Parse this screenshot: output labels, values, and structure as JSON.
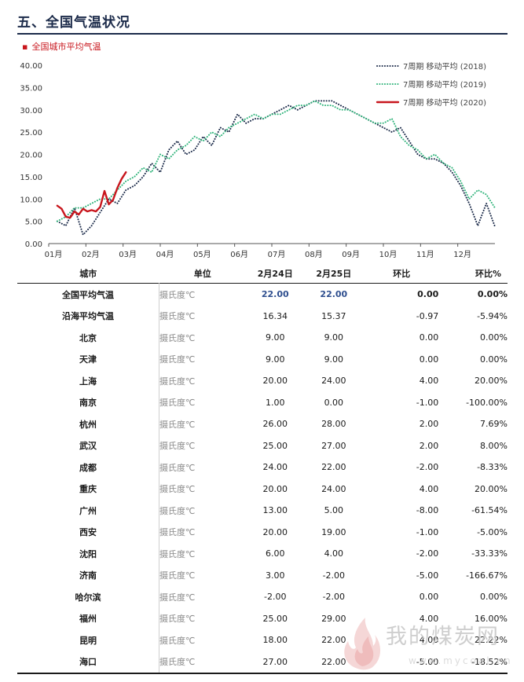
{
  "header": {
    "title": "五、全国气温状况"
  },
  "subtitle": {
    "bullet": "▪",
    "text": "全国城市平均气温"
  },
  "colors": {
    "y2018": "#1c2b4a",
    "y2019": "#2fb37a",
    "y2020": "#c8161d",
    "title": "#1c2b4a"
  },
  "chart_data": {
    "type": "line",
    "x_tick_labels": [
      "01月",
      "02月",
      "03月",
      "04月",
      "05月",
      "06月",
      "07月",
      "08月",
      "09月",
      "10月",
      "11月",
      "12月"
    ],
    "y_tick_labels": [
      "0.00",
      "5.00",
      "10.00",
      "15.00",
      "20.00",
      "25.00",
      "30.00",
      "35.00",
      "40.00"
    ],
    "ylim": [
      0,
      40
    ],
    "x_unit": "week",
    "xlim": [
      0,
      52
    ],
    "legend_position": "top-right",
    "grid": false,
    "series": [
      {
        "name": "7周期 移动平均 (2018)",
        "style": "dotted",
        "color": "#1c2b4a",
        "x": [
          1,
          2,
          3,
          4,
          5,
          6,
          7,
          8,
          9,
          10,
          11,
          12,
          13,
          14,
          15,
          16,
          17,
          18,
          19,
          20,
          21,
          22,
          23,
          24,
          25,
          26,
          27,
          28,
          29,
          30,
          31,
          32,
          33,
          34,
          35,
          36,
          37,
          38,
          39,
          40,
          41,
          42,
          43,
          44,
          45,
          46,
          47,
          48,
          49,
          50,
          51,
          52
        ],
        "values": [
          5,
          4,
          8,
          2,
          4,
          7,
          10,
          9,
          12,
          13,
          15,
          18,
          16,
          21,
          23,
          20,
          21,
          24,
          22,
          26,
          25,
          29,
          27,
          28,
          28,
          29,
          30,
          31,
          30,
          31,
          32,
          32,
          32,
          31,
          30,
          29,
          28,
          27,
          26,
          25,
          26,
          23,
          20,
          19,
          19,
          18,
          16,
          13,
          9,
          4,
          9,
          3.8
        ]
      },
      {
        "name": "7周期 移动平均 (2019)",
        "style": "dotted",
        "color": "#2fb37a",
        "x": [
          1,
          2,
          3,
          4,
          5,
          6,
          7,
          8,
          9,
          10,
          11,
          12,
          13,
          14,
          15,
          16,
          17,
          18,
          19,
          20,
          21,
          22,
          23,
          24,
          25,
          26,
          27,
          28,
          29,
          30,
          31,
          32,
          33,
          34,
          35,
          36,
          37,
          38,
          39,
          40,
          41,
          42,
          43,
          44,
          45,
          46,
          47,
          48,
          49,
          50,
          51,
          52
        ],
        "values": [
          5,
          6,
          8,
          8,
          9,
          10,
          10,
          12,
          14,
          15,
          17,
          16,
          20,
          19,
          21,
          22,
          24,
          23,
          25,
          24,
          26,
          27,
          28,
          29,
          28,
          29,
          29,
          30,
          31,
          31,
          32,
          31,
          31,
          30,
          30,
          29,
          28,
          27,
          27,
          28,
          24,
          22,
          21,
          19,
          20,
          18,
          17,
          14,
          10,
          12,
          11,
          8
        ]
      },
      {
        "name": "7周期 移动平均 (2020)",
        "style": "solid",
        "color": "#c8161d",
        "x": [
          1,
          1.5,
          2,
          2.5,
          3,
          3.5,
          4,
          4.5,
          5,
          5.5,
          6,
          6.5,
          7,
          7.5,
          8,
          8.5,
          9
        ],
        "values": [
          8.5,
          7.8,
          6,
          5.8,
          7.2,
          6.5,
          7.8,
          7.2,
          7.5,
          7.2,
          8.2,
          11.8,
          8.8,
          9.8,
          12.5,
          14.5,
          16
        ]
      }
    ]
  },
  "table": {
    "headers": [
      "城市",
      "单位",
      "2月24日",
      "2月25日",
      "环比",
      "环比%"
    ],
    "rows": [
      {
        "city": "全国平均气温",
        "unit": "摄氏度℃",
        "d1": "22.00",
        "d2": "22.00",
        "chg": "0.00",
        "pct": "0.00%"
      },
      {
        "city": "沿海平均气温",
        "unit": "摄氏度℃",
        "d1": "16.34",
        "d2": "15.37",
        "chg": "-0.97",
        "pct": "-5.94%"
      },
      {
        "city": "北京",
        "unit": "摄氏度℃",
        "d1": "9.00",
        "d2": "9.00",
        "chg": "0.00",
        "pct": "0.00%"
      },
      {
        "city": "天津",
        "unit": "摄氏度℃",
        "d1": "9.00",
        "d2": "9.00",
        "chg": "0.00",
        "pct": "0.00%"
      },
      {
        "city": "上海",
        "unit": "摄氏度℃",
        "d1": "20.00",
        "d2": "24.00",
        "chg": "4.00",
        "pct": "20.00%"
      },
      {
        "city": "南京",
        "unit": "摄氏度℃",
        "d1": "1.00",
        "d2": "0.00",
        "chg": "-1.00",
        "pct": "-100.00%"
      },
      {
        "city": "杭州",
        "unit": "摄氏度℃",
        "d1": "26.00",
        "d2": "28.00",
        "chg": "2.00",
        "pct": "7.69%"
      },
      {
        "city": "武汉",
        "unit": "摄氏度℃",
        "d1": "25.00",
        "d2": "27.00",
        "chg": "2.00",
        "pct": "8.00%"
      },
      {
        "city": "成都",
        "unit": "摄氏度℃",
        "d1": "24.00",
        "d2": "22.00",
        "chg": "-2.00",
        "pct": "-8.33%"
      },
      {
        "city": "重庆",
        "unit": "摄氏度℃",
        "d1": "20.00",
        "d2": "24.00",
        "chg": "4.00",
        "pct": "20.00%"
      },
      {
        "city": "广州",
        "unit": "摄氏度℃",
        "d1": "13.00",
        "d2": "5.00",
        "chg": "-8.00",
        "pct": "-61.54%"
      },
      {
        "city": "西安",
        "unit": "摄氏度℃",
        "d1": "20.00",
        "d2": "19.00",
        "chg": "-1.00",
        "pct": "-5.00%"
      },
      {
        "city": "沈阳",
        "unit": "摄氏度℃",
        "d1": "6.00",
        "d2": "4.00",
        "chg": "-2.00",
        "pct": "-33.33%"
      },
      {
        "city": "济南",
        "unit": "摄氏度℃",
        "d1": "3.00",
        "d2": "-2.00",
        "chg": "-5.00",
        "pct": "-166.67%"
      },
      {
        "city": "哈尔滨",
        "unit": "摄氏度℃",
        "d1": "-2.00",
        "d2": "-2.00",
        "chg": "0.00",
        "pct": "0.00%"
      },
      {
        "city": "福州",
        "unit": "摄氏度℃",
        "d1": "25.00",
        "d2": "29.00",
        "chg": "4.00",
        "pct": "16.00%"
      },
      {
        "city": "昆明",
        "unit": "摄氏度℃",
        "d1": "18.00",
        "d2": "22.00",
        "chg": "4.00",
        "pct": "22.22%"
      },
      {
        "city": "海口",
        "unit": "摄氏度℃",
        "d1": "27.00",
        "d2": "22.00",
        "chg": "-5.00",
        "pct": "-18.52%"
      }
    ]
  },
  "watermark": {
    "text": "我的煤炭网",
    "url": "www.mycoal.cn"
  }
}
